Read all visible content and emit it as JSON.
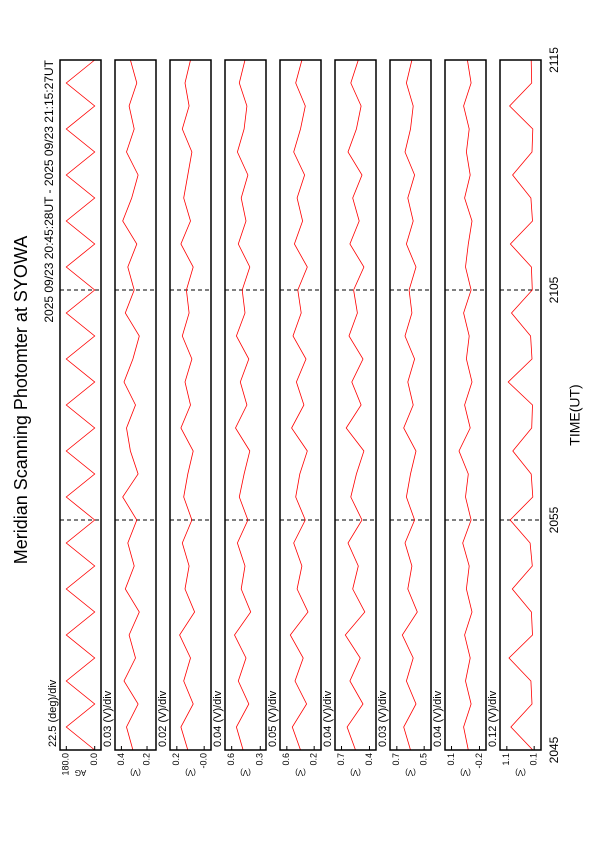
{
  "title": "Meridian Scanning Photomter at SYOWA",
  "subtitle": "2025 09/23 20:45:28UT - 2025 09/23 21:15:27UT",
  "xlabel": "TIME(UT)",
  "xlim": [
    0,
    30
  ],
  "xticks": [
    {
      "value": 0,
      "label": "2045"
    },
    {
      "value": 10,
      "label": "2055"
    },
    {
      "value": 20,
      "label": "2105"
    },
    {
      "value": 30,
      "label": "2115"
    }
  ],
  "x": [
    0,
    1,
    2,
    3,
    4,
    5,
    6,
    7,
    8,
    9,
    10,
    11,
    12,
    13,
    14,
    15,
    16,
    17,
    18,
    19,
    20,
    21,
    22,
    23,
    24,
    25,
    26,
    27,
    28,
    29,
    30
  ],
  "chart_data": [
    {
      "type": "line",
      "label": "22.5 (deg)/div",
      "ylabel": "AG",
      "color": "#ff0000",
      "ylim": [
        -40,
        220
      ],
      "yticks": [
        {
          "value": 180,
          "label": "180.0"
        },
        {
          "value": 0,
          "label": "0.0"
        }
      ],
      "values": [
        0,
        180,
        0,
        180,
        0,
        180,
        0,
        180,
        0,
        180,
        0,
        180,
        0,
        180,
        0,
        180,
        0,
        180,
        0,
        180,
        0,
        180,
        0,
        180,
        0,
        180,
        0,
        180,
        0,
        180,
        0
      ]
    },
    {
      "type": "line",
      "label": "0.03 (V)/div",
      "ylabel": "(V)",
      "color": "#ff0000",
      "ylim": [
        0.13,
        0.45
      ],
      "yticks": [
        0.4,
        0.2
      ],
      "values": [
        0.31,
        0.36,
        0.27,
        0.38,
        0.29,
        0.34,
        0.26,
        0.37,
        0.3,
        0.35,
        0.28,
        0.39,
        0.27,
        0.33,
        0.36,
        0.29,
        0.38,
        0.31,
        0.26,
        0.37,
        0.3,
        0.35,
        0.28,
        0.39,
        0.32,
        0.27,
        0.36,
        0.3,
        0.34,
        0.28,
        0.33
      ]
    },
    {
      "type": "line",
      "label": "0.02 (V)/div",
      "ylabel": "(V)",
      "color": "#ff0000",
      "ylim": [
        -0.05,
        0.25
      ],
      "yticks": [
        0.2,
        {
          "value": 0,
          "label": "-0.0"
        }
      ],
      "values": [
        0.12,
        0.17,
        0.08,
        0.15,
        0.1,
        0.18,
        0.07,
        0.14,
        0.11,
        0.16,
        0.09,
        0.15,
        0.12,
        0.08,
        0.17,
        0.1,
        0.14,
        0.09,
        0.16,
        0.11,
        0.13,
        0.08,
        0.17,
        0.1,
        0.15,
        0.12,
        0.09,
        0.16,
        0.11,
        0.14,
        0.1
      ]
    },
    {
      "type": "line",
      "label": "0.04 (V)/div",
      "ylabel": "(V)",
      "color": "#ff0000",
      "ylim": [
        0.24,
        0.67
      ],
      "yticks": [
        0.6,
        0.3
      ],
      "values": [
        0.48,
        0.55,
        0.42,
        0.53,
        0.45,
        0.57,
        0.4,
        0.5,
        0.46,
        0.54,
        0.43,
        0.52,
        0.47,
        0.41,
        0.56,
        0.44,
        0.51,
        0.42,
        0.55,
        0.46,
        0.49,
        0.41,
        0.53,
        0.45,
        0.5,
        0.43,
        0.54,
        0.47,
        0.44,
        0.52,
        0.46
      ]
    },
    {
      "type": "line",
      "label": "0.05 (V)/div",
      "ylabel": "(V)",
      "color": "#ff0000",
      "ylim": [
        0.1,
        0.7
      ],
      "yticks": [
        0.6,
        0.2
      ],
      "values": [
        0.4,
        0.52,
        0.31,
        0.48,
        0.36,
        0.55,
        0.29,
        0.45,
        0.38,
        0.5,
        0.33,
        0.47,
        0.41,
        0.3,
        0.53,
        0.35,
        0.46,
        0.32,
        0.51,
        0.39,
        0.44,
        0.3,
        0.49,
        0.37,
        0.45,
        0.34,
        0.5,
        0.4,
        0.33,
        0.47,
        0.38
      ]
    },
    {
      "type": "line",
      "label": "0.04 (V)/div",
      "ylabel": "(V)",
      "color": "#ff0000",
      "ylim": [
        0.33,
        0.77
      ],
      "yticks": [
        0.7,
        0.4
      ],
      "values": [
        0.55,
        0.64,
        0.47,
        0.61,
        0.5,
        0.66,
        0.45,
        0.58,
        0.52,
        0.63,
        0.48,
        0.6,
        0.54,
        0.46,
        0.65,
        0.49,
        0.59,
        0.47,
        0.62,
        0.53,
        0.57,
        0.46,
        0.61,
        0.51,
        0.58,
        0.48,
        0.63,
        0.54,
        0.49,
        0.6,
        0.52
      ]
    },
    {
      "type": "line",
      "label": "0.03 (V)/div",
      "ylabel": "(V)",
      "color": "#ff0000",
      "ylim": [
        0.45,
        0.75
      ],
      "yticks": [
        0.7,
        0.5
      ],
      "values": [
        0.6,
        0.65,
        0.56,
        0.63,
        0.58,
        0.66,
        0.55,
        0.62,
        0.59,
        0.64,
        0.57,
        0.63,
        0.6,
        0.56,
        0.65,
        0.58,
        0.62,
        0.57,
        0.64,
        0.59,
        0.61,
        0.56,
        0.63,
        0.58,
        0.62,
        0.57,
        0.64,
        0.6,
        0.58,
        0.63,
        0.59
      ]
    },
    {
      "type": "line",
      "label": "0.04 (V)/div",
      "ylabel": "(V)",
      "color": "#ff0000",
      "ylim": [
        -0.27,
        0.17
      ],
      "yticks": [
        0.1,
        -0.2
      ],
      "values": [
        -0.08,
        -0.03,
        -0.11,
        -0.05,
        -0.1,
        -0.04,
        -0.12,
        -0.06,
        -0.09,
        -0.02,
        -0.11,
        -0.05,
        -0.08,
        0.02,
        -0.1,
        -0.04,
        -0.12,
        -0.06,
        -0.09,
        -0.03,
        -0.11,
        -0.05,
        -0.08,
        -0.12,
        -0.04,
        -0.1,
        -0.06,
        -0.09,
        -0.03,
        -0.11,
        -0.07
      ]
    },
    {
      "type": "line",
      "label": "0.12 (V)/div",
      "ylabel": "(V)",
      "color": "#ff0000",
      "ylim": [
        -0.15,
        1.35
      ],
      "yticks": [
        1.1,
        0.1
      ],
      "values": [
        0.15,
        0.95,
        0.18,
        0.22,
        1.02,
        0.16,
        0.2,
        0.9,
        0.17,
        0.25,
        0.98,
        0.15,
        0.21,
        0.88,
        0.19,
        0.16,
        1.05,
        0.18,
        0.23,
        0.93,
        0.17,
        0.2,
        0.97,
        0.16,
        0.22,
        0.89,
        0.18,
        0.15,
        1.0,
        0.19,
        0.21
      ]
    }
  ]
}
